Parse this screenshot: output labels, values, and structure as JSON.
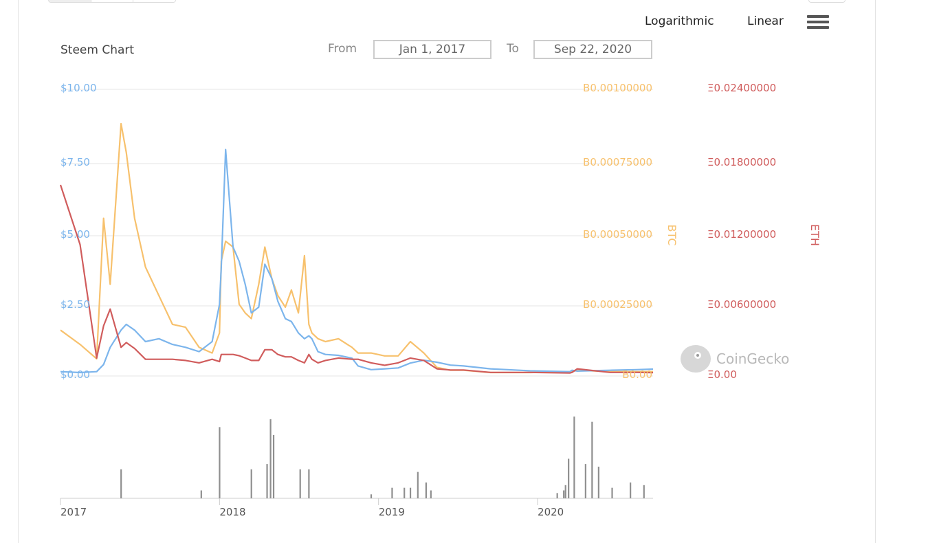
{
  "header": {
    "scale_options": [
      "Logarithmic",
      "Linear"
    ],
    "menu_icon": "hamburger-menu-icon",
    "title": "Steem Chart",
    "from_label": "From",
    "from_value": "Jan 1, 2017",
    "to_label": "To",
    "to_value": "Sep 22, 2020"
  },
  "watermark": {
    "text": "CoinGecko",
    "icon": "gecko-logo-icon"
  },
  "colors": {
    "usd": "#7cb5ec",
    "btc": "#f7c16d",
    "eth": "#d05c5c",
    "volume": "#8f8f8f",
    "grid": "#e6e6e6"
  },
  "chart_data": {
    "type": "line",
    "x_ticks": [
      "2017",
      "2018",
      "2019",
      "2020"
    ],
    "x": [
      "2017-01-01",
      "2017-02-15",
      "2017-03-25",
      "2017-04-10",
      "2017-04-25",
      "2017-05-20",
      "2017-06-01",
      "2017-06-20",
      "2017-07-15",
      "2017-08-15",
      "2017-09-15",
      "2017-10-15",
      "2017-11-15",
      "2017-12-15",
      "2018-01-01",
      "2018-01-05",
      "2018-01-15",
      "2018-02-01",
      "2018-02-15",
      "2018-03-01",
      "2018-03-15",
      "2018-04-01",
      "2018-04-15",
      "2018-05-01",
      "2018-05-15",
      "2018-06-01",
      "2018-06-15",
      "2018-07-01",
      "2018-07-15",
      "2018-07-25",
      "2018-08-01",
      "2018-08-15",
      "2018-09-01",
      "2018-10-01",
      "2018-11-01",
      "2018-11-15",
      "2018-12-15",
      "2019-01-15",
      "2019-02-15",
      "2019-03-15",
      "2019-04-15",
      "2019-05-15",
      "2019-06-15",
      "2019-07-15",
      "2019-09-15",
      "2019-12-15",
      "2020-03-15",
      "2020-03-20",
      "2020-04-01",
      "2020-06-15",
      "2020-08-15",
      "2020-09-22"
    ],
    "series": [
      {
        "axis": "USD",
        "color": "#7cb5ec",
        "values": [
          0.15,
          0.12,
          0.15,
          0.4,
          1.0,
          1.6,
          1.8,
          1.6,
          1.2,
          1.3,
          1.1,
          1.0,
          0.85,
          1.2,
          2.5,
          3.8,
          7.9,
          4.5,
          4.0,
          3.2,
          2.2,
          2.4,
          3.9,
          3.4,
          2.6,
          2.0,
          1.9,
          1.5,
          1.3,
          1.4,
          1.3,
          0.85,
          0.75,
          0.72,
          0.62,
          0.35,
          0.22,
          0.25,
          0.28,
          0.45,
          0.55,
          0.48,
          0.38,
          0.35,
          0.25,
          0.18,
          0.15,
          0.2,
          0.17,
          0.2,
          0.22,
          0.24
        ]
      },
      {
        "axis": "BTC",
        "color": "#f7c16d",
        "values": [
          0.00016,
          0.00011,
          6e-05,
          0.00055,
          0.00032,
          0.00088,
          0.00078,
          0.00055,
          0.00038,
          0.00028,
          0.00018,
          0.00017,
          0.0001,
          8e-05,
          0.00015,
          0.0004,
          0.00047,
          0.00045,
          0.00025,
          0.00022,
          0.0002,
          0.00032,
          0.00045,
          0.00034,
          0.00028,
          0.00024,
          0.0003,
          0.00022,
          0.00042,
          0.00018,
          0.00015,
          0.00013,
          0.00012,
          0.00013,
          0.0001,
          8e-05,
          8e-05,
          7e-05,
          7e-05,
          0.00012,
          8e-05,
          3e-05,
          2e-05,
          2e-05,
          1.2e-05,
          1.2e-05,
          1.5e-05,
          1.5e-05,
          2e-05,
          1.5e-05,
          1.5e-05,
          1.5e-05
        ]
      },
      {
        "axis": "ETH",
        "color": "#d05c5c",
        "values": [
          0.016,
          0.011,
          0.0015,
          0.0042,
          0.0056,
          0.0024,
          0.0028,
          0.0023,
          0.0014,
          0.0014,
          0.0014,
          0.0013,
          0.0011,
          0.0014,
          0.0012,
          0.0018,
          0.0018,
          0.0018,
          0.0017,
          0.0015,
          0.0013,
          0.0013,
          0.0022,
          0.0022,
          0.0018,
          0.0016,
          0.0016,
          0.0013,
          0.0011,
          0.0018,
          0.0014,
          0.0011,
          0.0013,
          0.0015,
          0.0014,
          0.0014,
          0.0011,
          0.0009,
          0.0011,
          0.0015,
          0.0013,
          0.0006,
          0.0005,
          0.0005,
          0.0003,
          0.0003,
          0.00025,
          0.0003,
          0.0006,
          0.0003,
          0.0003,
          0.00028
        ]
      }
    ],
    "volume": {
      "x": [
        "2017-05-20",
        "2017-11-20",
        "2018-01-01",
        "2018-03-15",
        "2018-04-20",
        "2018-04-28",
        "2018-05-05",
        "2018-07-05",
        "2018-07-25",
        "2018-12-15",
        "2019-02-01",
        "2019-03-01",
        "2019-03-15",
        "2019-04-01",
        "2019-04-20",
        "2019-05-01",
        "2020-02-15",
        "2020-03-01",
        "2020-03-05",
        "2020-03-12",
        "2020-03-25",
        "2020-04-20",
        "2020-05-05",
        "2020-05-20",
        "2020-06-20",
        "2020-08-01",
        "2020-09-01"
      ],
      "values": [
        1.1,
        0.3,
        2.7,
        1.1,
        1.3,
        3.0,
        2.4,
        1.1,
        1.1,
        0.15,
        0.4,
        0.4,
        0.4,
        1.0,
        0.6,
        0.3,
        0.2,
        0.3,
        0.5,
        1.5,
        3.1,
        1.3,
        2.9,
        1.2,
        0.4,
        0.6,
        0.5
      ]
    },
    "y_axes": [
      {
        "name": "USD",
        "title": "",
        "ticks": [
          "$10.00",
          "$7.50",
          "$5.00",
          "$2.50",
          "$0.00"
        ],
        "range": [
          0,
          10
        ]
      },
      {
        "name": "BTC",
        "title": "BTC",
        "ticks": [
          "B0.00100000",
          "B0.00075000",
          "B0.00050000",
          "B0.00025000",
          "B0.00"
        ],
        "range": [
          0,
          0.001
        ]
      },
      {
        "name": "ETH",
        "title": "ETH",
        "ticks": [
          "Ξ0.02400000",
          "Ξ0.01800000",
          "Ξ0.01200000",
          "Ξ0.00600000",
          "Ξ0.00"
        ],
        "range": [
          0,
          0.024
        ]
      }
    ],
    "grid": true
  }
}
